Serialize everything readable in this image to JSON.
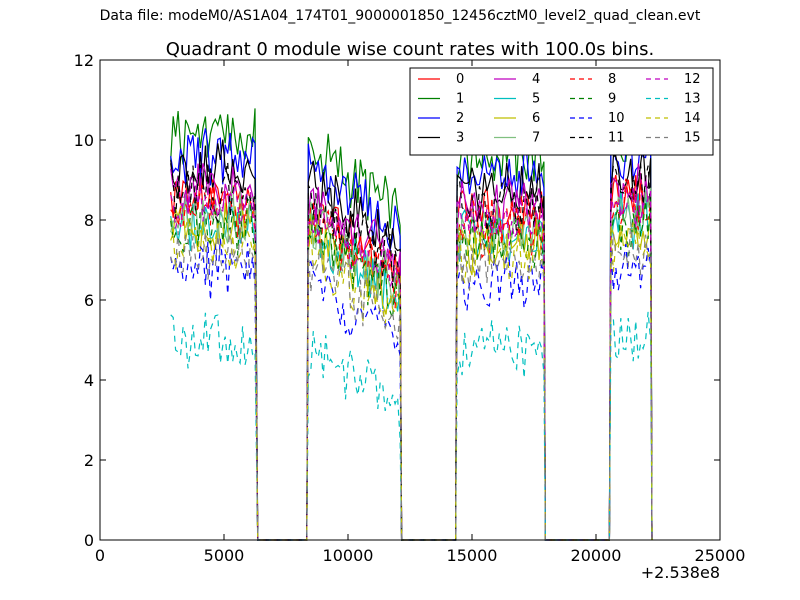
{
  "figure": {
    "suptitle": "Data file: modeM0/AS1A04_174T01_9000001850_12456cztM0_level2_quad_clean.evt"
  },
  "chart_data": {
    "type": "line",
    "title": "Quadrant 0 module wise count rates with 100.0s bins.",
    "xlabel": "",
    "ylabel": "",
    "x_offset_label": "+2.538e8",
    "xlim": [
      0,
      25000
    ],
    "ylim": [
      0,
      12
    ],
    "xticks": [
      0,
      5000,
      10000,
      15000,
      20000,
      25000
    ],
    "yticks": [
      0,
      2,
      4,
      6,
      8,
      10,
      12
    ],
    "grid": false,
    "legend_position": "top-right",
    "legend_columns": 4,
    "segments": [
      [
        2850,
        6300
      ],
      [
        8400,
        12100
      ],
      [
        14400,
        17900
      ],
      [
        20600,
        22200
      ]
    ],
    "series": [
      {
        "name": "0",
        "color": "#ff0000",
        "dashed": false,
        "base": 8.5
      },
      {
        "name": "1",
        "color": "#008000",
        "dashed": false,
        "base": 10.1
      },
      {
        "name": "2",
        "color": "#0000ff",
        "dashed": false,
        "base": 9.6
      },
      {
        "name": "3",
        "color": "#000000",
        "dashed": false,
        "base": 9.2
      },
      {
        "name": "4",
        "color": "#bf00bf",
        "dashed": false,
        "base": 8.8
      },
      {
        "name": "5",
        "color": "#00bfbf",
        "dashed": false,
        "base": 8.0
      },
      {
        "name": "6",
        "color": "#bfbf00",
        "dashed": false,
        "base": 7.8
      },
      {
        "name": "7",
        "color": "#80c080",
        "dashed": false,
        "base": 8.1
      },
      {
        "name": "8",
        "color": "#ff0000",
        "dashed": true,
        "base": 8.3
      },
      {
        "name": "9",
        "color": "#008000",
        "dashed": true,
        "base": 7.9
      },
      {
        "name": "10",
        "color": "#0000ff",
        "dashed": true,
        "base": 6.8
      },
      {
        "name": "11",
        "color": "#000000",
        "dashed": true,
        "base": 8.7
      },
      {
        "name": "12",
        "color": "#bf00bf",
        "dashed": true,
        "base": 8.4
      },
      {
        "name": "13",
        "color": "#00bfbf",
        "dashed": true,
        "base": 5.0
      },
      {
        "name": "14",
        "color": "#bfbf00",
        "dashed": true,
        "base": 7.4
      },
      {
        "name": "15",
        "color": "#808080",
        "dashed": true,
        "base": 7.2
      }
    ]
  }
}
